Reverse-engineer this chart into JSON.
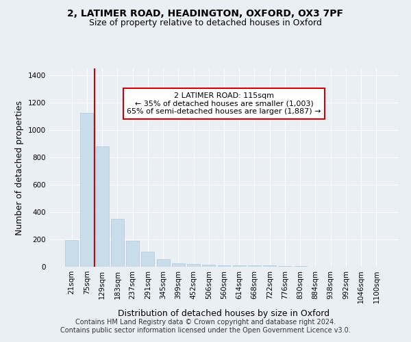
{
  "title_line1": "2, LATIMER ROAD, HEADINGTON, OXFORD, OX3 7PF",
  "title_line2": "Size of property relative to detached houses in Oxford",
  "xlabel": "Distribution of detached houses by size in Oxford",
  "ylabel": "Number of detached properties",
  "categories": [
    "21sqm",
    "75sqm",
    "129sqm",
    "183sqm",
    "237sqm",
    "291sqm",
    "345sqm",
    "399sqm",
    "452sqm",
    "506sqm",
    "560sqm",
    "614sqm",
    "668sqm",
    "722sqm",
    "776sqm",
    "830sqm",
    "884sqm",
    "938sqm",
    "992sqm",
    "1046sqm",
    "1100sqm"
  ],
  "bar_heights": [
    195,
    1125,
    880,
    350,
    190,
    108,
    55,
    25,
    20,
    15,
    10,
    12,
    12,
    8,
    5,
    3,
    2,
    1,
    1,
    1,
    0
  ],
  "bar_color": "#c9dcea",
  "bar_edge_color": "#b0c8dc",
  "vline_x_index": 1.5,
  "vline_color": "#cc0000",
  "annotation_text": "2 LATIMER ROAD: 115sqm\n← 35% of detached houses are smaller (1,003)\n65% of semi-detached houses are larger (1,887) →",
  "annotation_box_facecolor": "#ffffff",
  "annotation_box_edgecolor": "#cc0000",
  "ylim": [
    0,
    1450
  ],
  "yticks": [
    0,
    200,
    400,
    600,
    800,
    1000,
    1200,
    1400
  ],
  "bg_color": "#eaeff5",
  "plot_bg_color": "#eaeff5",
  "grid_color": "#ffffff",
  "footer_line1": "Contains HM Land Registry data © Crown copyright and database right 2024.",
  "footer_line2": "Contains public sector information licensed under the Open Government Licence v3.0.",
  "title_fontsize": 10,
  "subtitle_fontsize": 9,
  "axis_label_fontsize": 9,
  "tick_fontsize": 7.5,
  "annotation_fontsize": 8,
  "footer_fontsize": 7
}
